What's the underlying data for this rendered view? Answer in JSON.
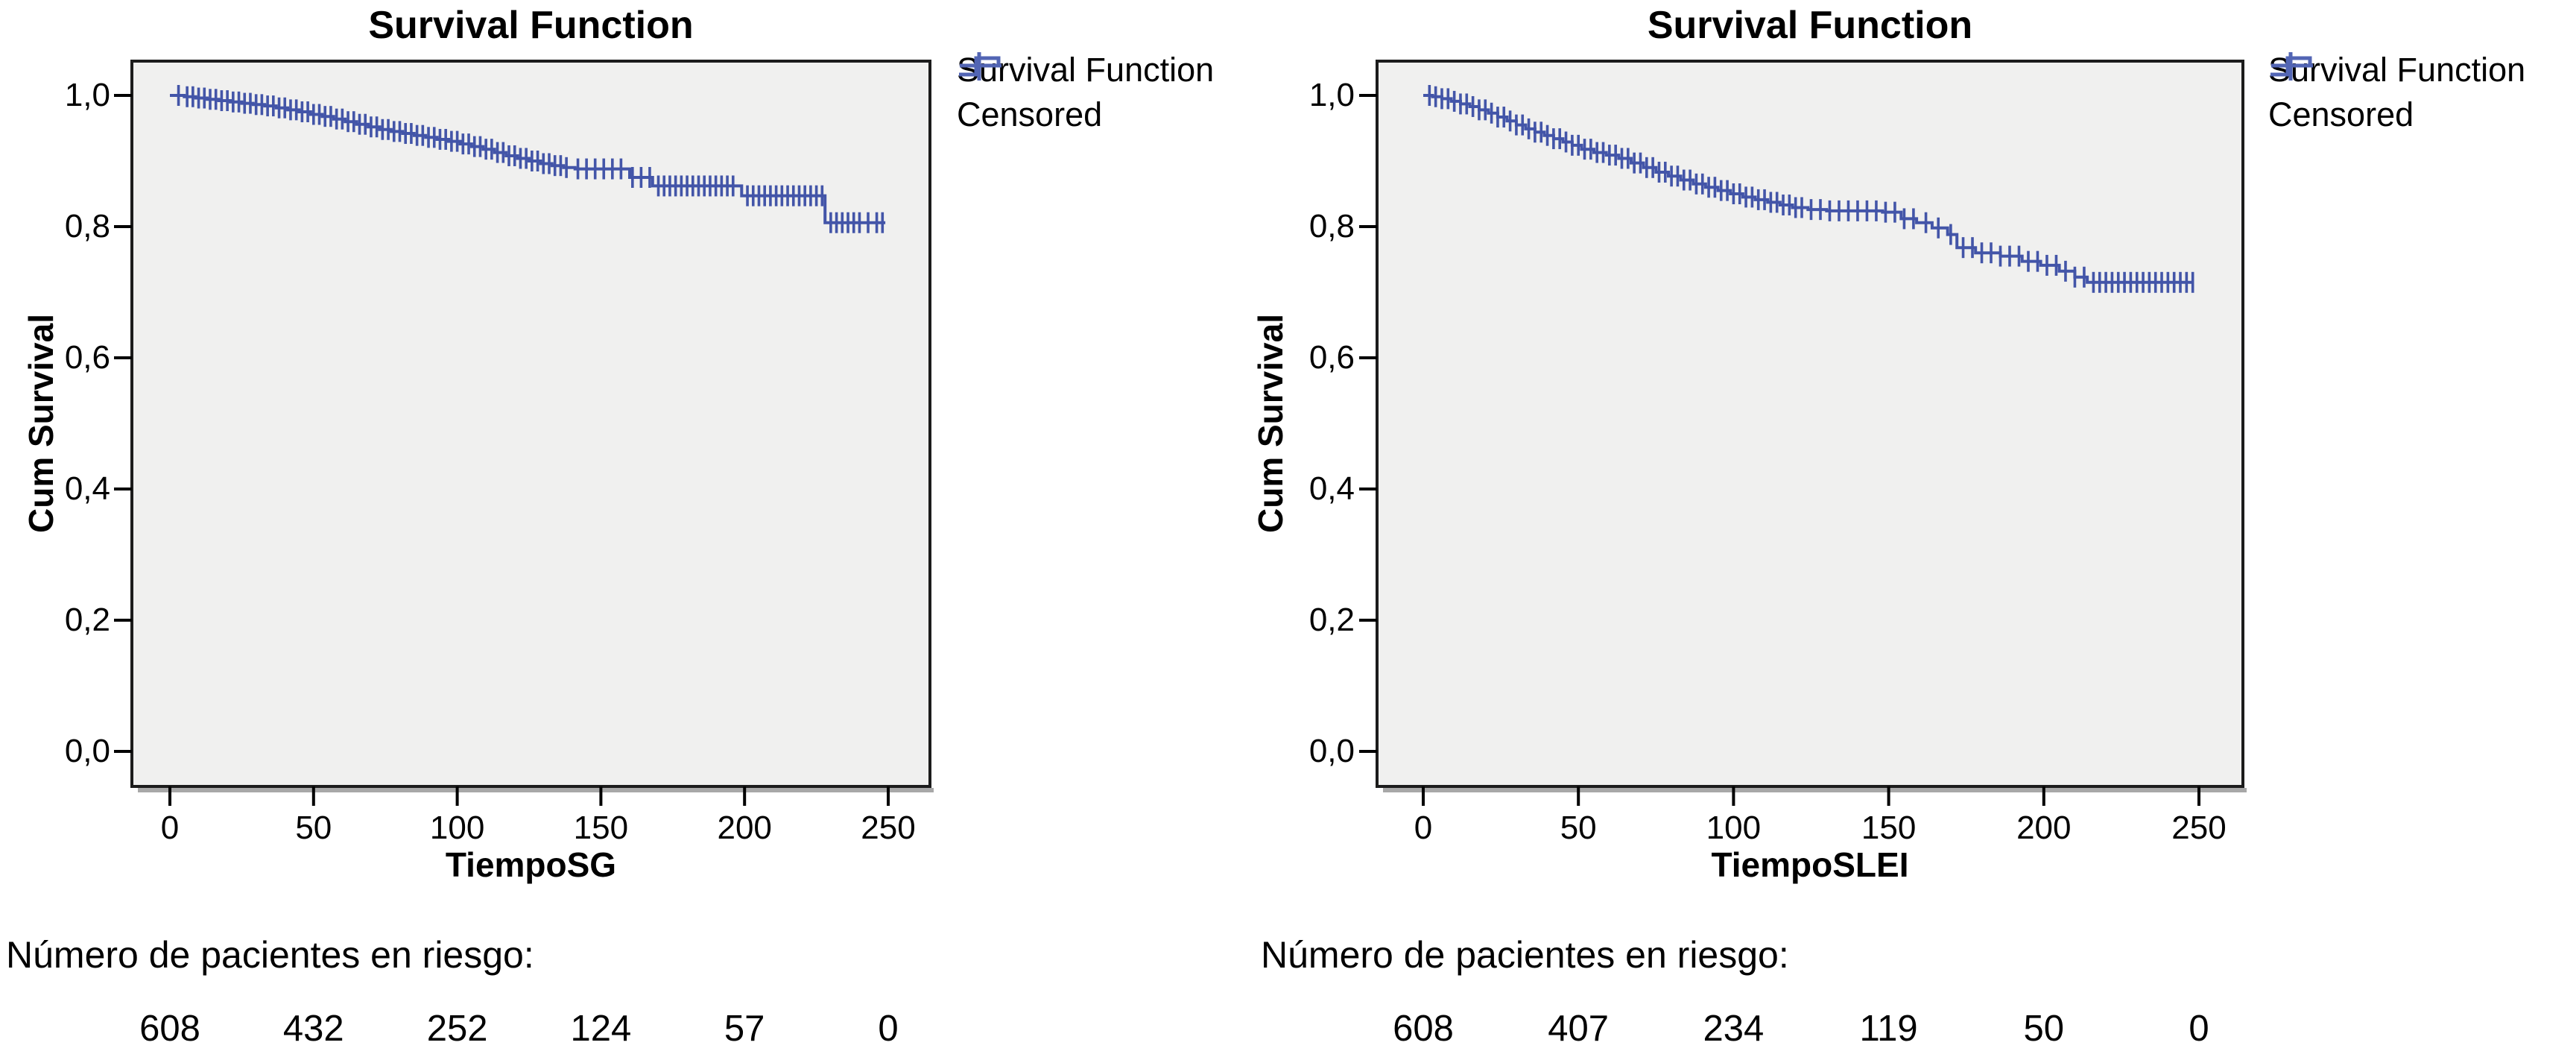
{
  "figure": {
    "background": "#ffffff"
  },
  "chart_data": [
    {
      "type": "line",
      "chart_kind": "kaplan-meier-step",
      "title": "Survival Function",
      "xlabel": "TiempoSG",
      "ylabel": "Cum Survival",
      "x_ticks": [
        0,
        50,
        100,
        150,
        200,
        250
      ],
      "y_tick_labels": [
        "1,0",
        "0,8",
        "0,6",
        "0,4",
        "0,2",
        "0,0"
      ],
      "y_tick_values": [
        1.0,
        0.8,
        0.6,
        0.4,
        0.2,
        0.0
      ],
      "xlim": [
        -13,
        264
      ],
      "ylim": [
        -0.05,
        1.05
      ],
      "grid": false,
      "legend_position": "right-top",
      "legend": [
        {
          "label": "Survival Function",
          "marker": "step-line"
        },
        {
          "label": "Censored",
          "marker": "plus"
        }
      ],
      "line_color": "#4355a8",
      "plot_background": "#f0f0ef",
      "frame_color": "#1c1c1c",
      "steps": [
        [
          0,
          1.0
        ],
        [
          5,
          0.998
        ],
        [
          9,
          0.996
        ],
        [
          13,
          0.994
        ],
        [
          17,
          0.992
        ],
        [
          21,
          0.99
        ],
        [
          25,
          0.988
        ],
        [
          29,
          0.986
        ],
        [
          33,
          0.984
        ],
        [
          37,
          0.981
        ],
        [
          41,
          0.978
        ],
        [
          45,
          0.975
        ],
        [
          49,
          0.971
        ],
        [
          53,
          0.968
        ],
        [
          57,
          0.964
        ],
        [
          61,
          0.96
        ],
        [
          65,
          0.956
        ],
        [
          69,
          0.952
        ],
        [
          73,
          0.948
        ],
        [
          77,
          0.945
        ],
        [
          81,
          0.942
        ],
        [
          85,
          0.939
        ],
        [
          89,
          0.936
        ],
        [
          93,
          0.933
        ],
        [
          97,
          0.93
        ],
        [
          101,
          0.926
        ],
        [
          105,
          0.922
        ],
        [
          109,
          0.918
        ],
        [
          113,
          0.913
        ],
        [
          117,
          0.908
        ],
        [
          121,
          0.904
        ],
        [
          125,
          0.9
        ],
        [
          129,
          0.896
        ],
        [
          133,
          0.893
        ],
        [
          137,
          0.89
        ],
        [
          141,
          0.888
        ],
        [
          160,
          0.875
        ],
        [
          168,
          0.862
        ],
        [
          199,
          0.847
        ],
        [
          228,
          0.806
        ],
        [
          249,
          0.806
        ]
      ],
      "censor_times": [
        3,
        6,
        8,
        10,
        12,
        14,
        16,
        18,
        20,
        22,
        24,
        26,
        28,
        30,
        32,
        34,
        36,
        38,
        40,
        42,
        44,
        46,
        48,
        50,
        52,
        54,
        56,
        58,
        60,
        62,
        64,
        66,
        68,
        70,
        72,
        74,
        76,
        78,
        80,
        82,
        84,
        86,
        88,
        90,
        92,
        94,
        96,
        98,
        100,
        102,
        104,
        106,
        108,
        110,
        112,
        114,
        116,
        118,
        120,
        122,
        124,
        126,
        128,
        130,
        132,
        134,
        136,
        138,
        142,
        145,
        148,
        151,
        154,
        157,
        161,
        164,
        167,
        170,
        172,
        174,
        176,
        178,
        180,
        182,
        184,
        186,
        188,
        190,
        192,
        194,
        196,
        201,
        203,
        205,
        207,
        209,
        211,
        213,
        215,
        217,
        219,
        221,
        223,
        225,
        227,
        230,
        232,
        234,
        236,
        238,
        240,
        243,
        246,
        248
      ],
      "risk_caption": "Número de pacientes en riesgo:",
      "risk_counts": [
        608,
        432,
        252,
        124,
        57,
        0
      ]
    },
    {
      "type": "line",
      "chart_kind": "kaplan-meier-step",
      "title": "Survival Function",
      "xlabel": "TiempoSLEI",
      "ylabel": "Cum Survival",
      "x_ticks": [
        0,
        50,
        100,
        150,
        200,
        250
      ],
      "y_tick_labels": [
        "1,0",
        "0,8",
        "0,6",
        "0,4",
        "0,2",
        "0,0"
      ],
      "y_tick_values": [
        1.0,
        0.8,
        0.6,
        0.4,
        0.2,
        0.0
      ],
      "xlim": [
        -15,
        264
      ],
      "ylim": [
        -0.05,
        1.05
      ],
      "grid": false,
      "legend_position": "right-top",
      "legend": [
        {
          "label": "Survival Function",
          "marker": "step-line"
        },
        {
          "label": "Censored",
          "marker": "plus"
        }
      ],
      "line_color": "#4355a8",
      "plot_background": "#f0f0ef",
      "frame_color": "#1c1c1c",
      "steps": [
        [
          0,
          1.0
        ],
        [
          3,
          0.998
        ],
        [
          6,
          0.995
        ],
        [
          9,
          0.991
        ],
        [
          12,
          0.987
        ],
        [
          15,
          0.983
        ],
        [
          18,
          0.978
        ],
        [
          21,
          0.973
        ],
        [
          24,
          0.967
        ],
        [
          27,
          0.961
        ],
        [
          30,
          0.955
        ],
        [
          33,
          0.949
        ],
        [
          36,
          0.944
        ],
        [
          39,
          0.939
        ],
        [
          42,
          0.934
        ],
        [
          45,
          0.929
        ],
        [
          48,
          0.924
        ],
        [
          51,
          0.918
        ],
        [
          55,
          0.913
        ],
        [
          59,
          0.909
        ],
        [
          63,
          0.904
        ],
        [
          67,
          0.897
        ],
        [
          71,
          0.89
        ],
        [
          75,
          0.883
        ],
        [
          79,
          0.877
        ],
        [
          83,
          0.871
        ],
        [
          87,
          0.865
        ],
        [
          91,
          0.86
        ],
        [
          95,
          0.855
        ],
        [
          99,
          0.85
        ],
        [
          103,
          0.845
        ],
        [
          107,
          0.841
        ],
        [
          111,
          0.837
        ],
        [
          115,
          0.833
        ],
        [
          119,
          0.829
        ],
        [
          124,
          0.826
        ],
        [
          130,
          0.824
        ],
        [
          148,
          0.822
        ],
        [
          154,
          0.812
        ],
        [
          159,
          0.806
        ],
        [
          164,
          0.798
        ],
        [
          169,
          0.788
        ],
        [
          172,
          0.768
        ],
        [
          178,
          0.76
        ],
        [
          186,
          0.755
        ],
        [
          193,
          0.747
        ],
        [
          199,
          0.741
        ],
        [
          205,
          0.732
        ],
        [
          210,
          0.723
        ],
        [
          214,
          0.715
        ],
        [
          248,
          0.715
        ]
      ],
      "censor_times": [
        2,
        4,
        6,
        8,
        10,
        12,
        14,
        16,
        18,
        20,
        22,
        24,
        26,
        28,
        30,
        32,
        34,
        36,
        38,
        40,
        42,
        44,
        46,
        48,
        50,
        52,
        54,
        56,
        58,
        60,
        62,
        64,
        66,
        68,
        70,
        72,
        74,
        76,
        78,
        80,
        82,
        84,
        86,
        88,
        90,
        92,
        94,
        96,
        98,
        100,
        102,
        104,
        106,
        108,
        110,
        112,
        114,
        116,
        118,
        120,
        122,
        125,
        128,
        131,
        134,
        137,
        140,
        143,
        146,
        149,
        152,
        155,
        158,
        162,
        166,
        170,
        174,
        177,
        180,
        183,
        186,
        189,
        192,
        195,
        198,
        201,
        204,
        207,
        210,
        213,
        216,
        218,
        220,
        222,
        224,
        226,
        228,
        230,
        232,
        234,
        236,
        238,
        240,
        242,
        244,
        246,
        248
      ],
      "risk_caption": "Número de pacientes en riesgo:",
      "risk_counts": [
        608,
        407,
        234,
        119,
        50,
        0
      ]
    }
  ]
}
